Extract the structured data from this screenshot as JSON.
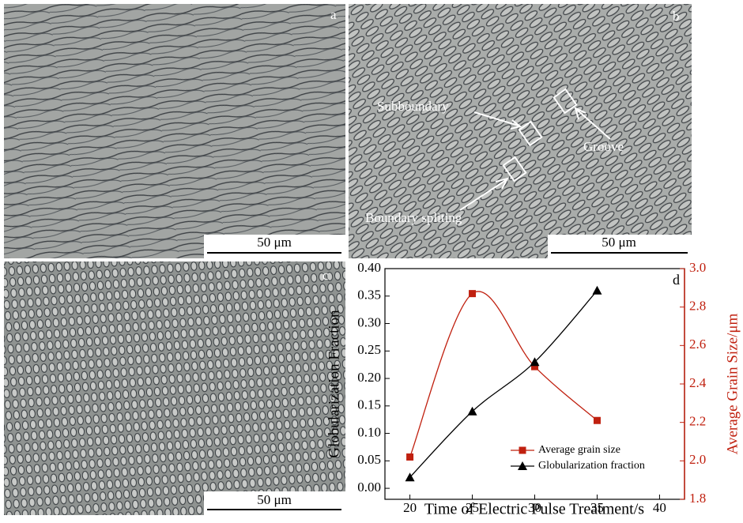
{
  "panels": [
    {
      "label": "a",
      "scale_bar": "50 μm"
    },
    {
      "label": "b",
      "scale_bar": "50 μm"
    },
    {
      "label": "c",
      "scale_bar": "50 μm"
    }
  ],
  "annotations": [
    "Subboundary",
    "Groove",
    "Boundary spliting"
  ],
  "chart_data": {
    "type": "line",
    "label": "d",
    "xlabel": "Time of Electric Pulse Treatment/s",
    "ylabel": "Globularization Fraction",
    "y2label": "Average Grain Size/μm",
    "x": [
      20,
      25,
      30,
      35
    ],
    "xlim": [
      18,
      42
    ],
    "xticks": [
      20,
      25,
      30,
      35,
      40
    ],
    "ylim": [
      -0.02,
      0.4
    ],
    "yticks": [
      {
        "value": 0,
        "label": "0.00"
      },
      {
        "value": 0.05,
        "label": "0.05"
      },
      {
        "value": 0.1,
        "label": "0.10"
      },
      {
        "value": 0.15,
        "label": "0.15"
      },
      {
        "value": 0.2,
        "label": "0.20"
      },
      {
        "value": 0.25,
        "label": "0.25"
      },
      {
        "value": 0.3,
        "label": "0.30"
      },
      {
        "value": 0.35,
        "label": "0.35"
      },
      {
        "value": 0.4,
        "label": "0.40"
      }
    ],
    "y2lim": [
      1.8,
      3.0
    ],
    "y2ticks": [
      1.8,
      {
        "value": 2.0,
        "label": "2.0"
      },
      2.2,
      2.4,
      2.6,
      2.8,
      {
        "value": 3.0,
        "label": "3.0"
      }
    ],
    "series": [
      {
        "name": "Average grain size",
        "color": "#c0200f",
        "marker": "square",
        "axis": "y2",
        "values": [
          2.02,
          2.87,
          2.49,
          2.21
        ]
      },
      {
        "name": "Globularization fraction",
        "color": "#000000",
        "marker": "triangle",
        "values": [
          0.02,
          0.14,
          0.23,
          0.36
        ]
      }
    ],
    "smooth": true,
    "legend": "lower right"
  }
}
